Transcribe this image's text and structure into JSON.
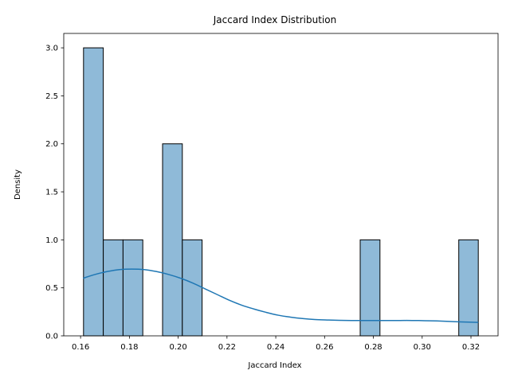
{
  "chart_data": {
    "type": "bar",
    "title": "Jaccard Index Distribution",
    "xlabel": "Jaccard Index",
    "ylabel": "Density",
    "xlim": [
      0.1531,
      0.3311
    ],
    "ylim": [
      0,
      3.15
    ],
    "xticks": [
      0.16,
      0.18,
      0.2,
      0.22,
      0.24,
      0.26,
      0.28,
      0.3,
      0.32
    ],
    "xtick_labels": [
      "0.16",
      "0.18",
      "0.20",
      "0.22",
      "0.24",
      "0.26",
      "0.28",
      "0.30",
      "0.32"
    ],
    "yticks": [
      0.0,
      0.5,
      1.0,
      1.5,
      2.0,
      2.5,
      3.0
    ],
    "ytick_labels": [
      "0.0",
      "0.5",
      "1.0",
      "1.5",
      "2.0",
      "2.5",
      "3.0"
    ],
    "grid": false,
    "bins": [
      {
        "x0": 0.1612,
        "x1": 0.1693,
        "value": 3
      },
      {
        "x0": 0.1693,
        "x1": 0.1774,
        "value": 1
      },
      {
        "x0": 0.1774,
        "x1": 0.1855,
        "value": 1
      },
      {
        "x0": 0.1936,
        "x1": 0.2017,
        "value": 2
      },
      {
        "x0": 0.2017,
        "x1": 0.2098,
        "value": 1
      },
      {
        "x0": 0.2746,
        "x1": 0.2827,
        "value": 1
      },
      {
        "x0": 0.315,
        "x1": 0.323,
        "value": 1
      }
    ],
    "kde": {
      "x": [
        0.161,
        0.166,
        0.171,
        0.176,
        0.181,
        0.186,
        0.191,
        0.196,
        0.201,
        0.206,
        0.211,
        0.216,
        0.221,
        0.226,
        0.231,
        0.236,
        0.241,
        0.246,
        0.251,
        0.256,
        0.261,
        0.266,
        0.271,
        0.276,
        0.281,
        0.286,
        0.291,
        0.296,
        0.301,
        0.306,
        0.311,
        0.316,
        0.323
      ],
      "y": [
        0.6,
        0.64,
        0.67,
        0.69,
        0.695,
        0.69,
        0.67,
        0.64,
        0.6,
        0.55,
        0.49,
        0.43,
        0.37,
        0.32,
        0.28,
        0.245,
        0.215,
        0.195,
        0.18,
        0.17,
        0.165,
        0.162,
        0.16,
        0.16,
        0.16,
        0.16,
        0.16,
        0.16,
        0.158,
        0.155,
        0.15,
        0.145,
        0.14
      ]
    },
    "colors": {
      "bar_fill": "#8fbad8",
      "bar_edge": "#000000",
      "kde_line": "#1f77b4"
    }
  }
}
